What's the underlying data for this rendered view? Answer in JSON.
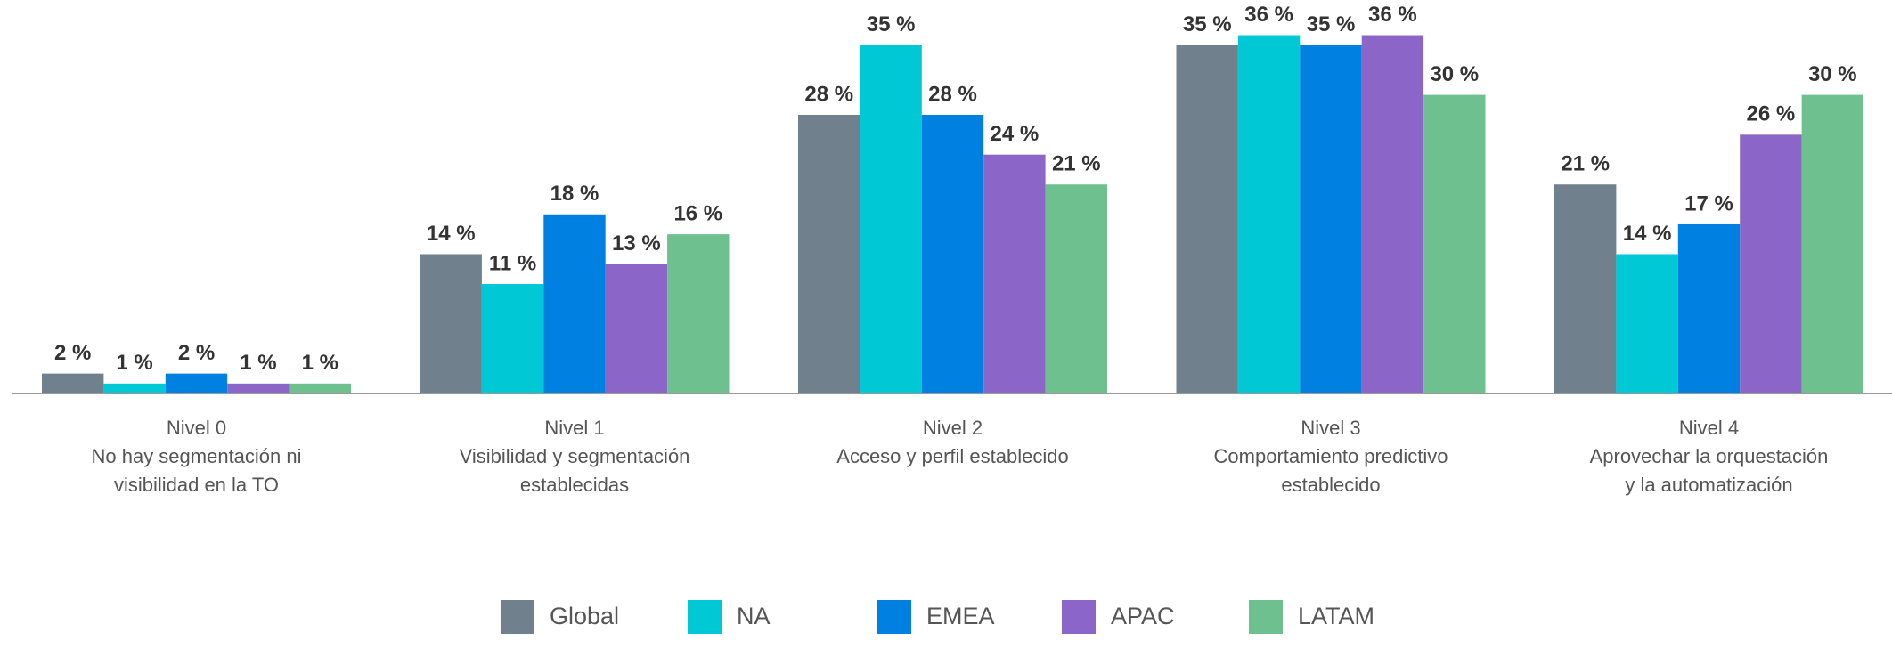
{
  "chart_data": {
    "type": "bar",
    "categories": [
      [
        "Nivel 0",
        "No hay segmentación ni",
        "visibilidad en la TO"
      ],
      [
        "Nivel 1",
        "Visibilidad y segmentación",
        "establecidas"
      ],
      [
        "Nivel 2",
        "Acceso y perfil establecido"
      ],
      [
        "Nivel 3",
        "Comportamiento predictivo",
        "establecido"
      ],
      [
        "Nivel 4",
        "Aprovechar la orquestación",
        "y la automatización"
      ]
    ],
    "series": [
      {
        "name": "Global",
        "color": "#71808d",
        "values": [
          2,
          14,
          28,
          35,
          21
        ],
        "value_labels": [
          "2 %",
          "14 %",
          "28 %",
          "35 %",
          "21 %"
        ]
      },
      {
        "name": "NA",
        "color": "#00c8d4",
        "values": [
          1,
          11,
          35,
          36,
          14
        ],
        "value_labels": [
          "1 %",
          "11 %",
          "35 %",
          "36 %",
          "14 %"
        ]
      },
      {
        "name": "EMEA",
        "color": "#0080e0",
        "values": [
          2,
          18,
          28,
          35,
          17
        ],
        "value_labels": [
          "2 %",
          "18 %",
          "28 %",
          "35 %",
          "17 %"
        ]
      },
      {
        "name": "APAC",
        "color": "#8b65c8",
        "values": [
          1,
          13,
          24,
          36,
          26
        ],
        "value_labels": [
          "1 %",
          "13 %",
          "24 %",
          "36 %",
          "26 %"
        ]
      },
      {
        "name": "LATAM",
        "color": "#6ec18e",
        "values": [
          1,
          16,
          21,
          30,
          30
        ],
        "value_labels": [
          "1 %",
          "16 %",
          "21 %",
          "30 %",
          "30 %"
        ]
      }
    ],
    "ylim": [
      0,
      39
    ],
    "legend": "bottom"
  }
}
